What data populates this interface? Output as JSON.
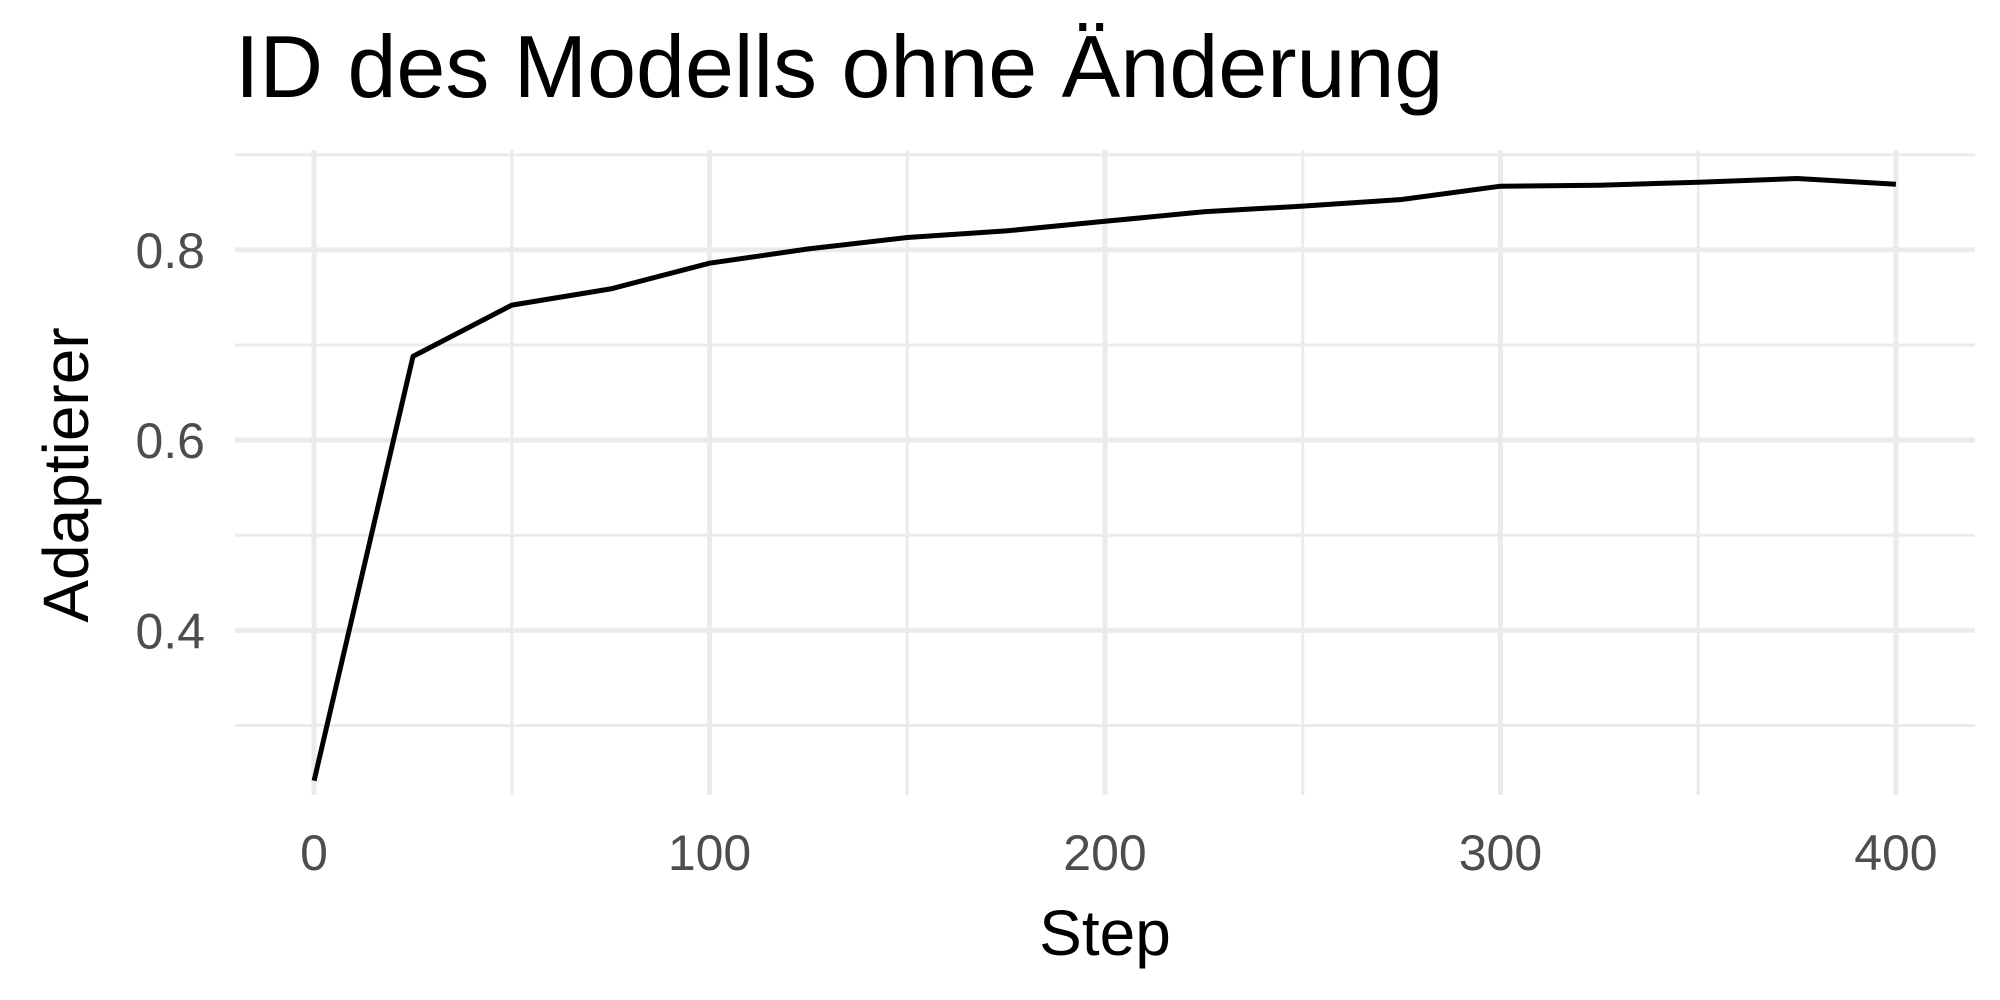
{
  "chart_data": {
    "type": "line",
    "title": "ID des Modells ohne Änderung",
    "xlabel": "Step",
    "ylabel": "Adaptierer",
    "xlim": [
      -20,
      420
    ],
    "ylim": [
      0.227,
      0.905
    ],
    "x_ticks": [
      0,
      100,
      200,
      300,
      400
    ],
    "x_tick_labels": [
      "0",
      "100",
      "200",
      "300",
      "400"
    ],
    "x_minor_ticks": [
      50,
      150,
      250,
      350
    ],
    "y_ticks": [
      0.4,
      0.6,
      0.8
    ],
    "y_tick_labels": [
      "0.4",
      "0.6",
      "0.8"
    ],
    "y_minor_ticks": [
      0.3,
      0.5,
      0.7,
      0.9
    ],
    "grid": true,
    "legend": "none",
    "series": [
      {
        "color": "#000000",
        "x": [
          0,
          25,
          50,
          75,
          100,
          125,
          150,
          175,
          200,
          225,
          250,
          275,
          300,
          325,
          350,
          375,
          400
        ],
        "y": [
          0.242,
          0.688,
          0.742,
          0.759,
          0.786,
          0.801,
          0.813,
          0.82,
          0.83,
          0.84,
          0.846,
          0.853,
          0.867,
          0.868,
          0.871,
          0.875,
          0.869
        ]
      }
    ]
  }
}
